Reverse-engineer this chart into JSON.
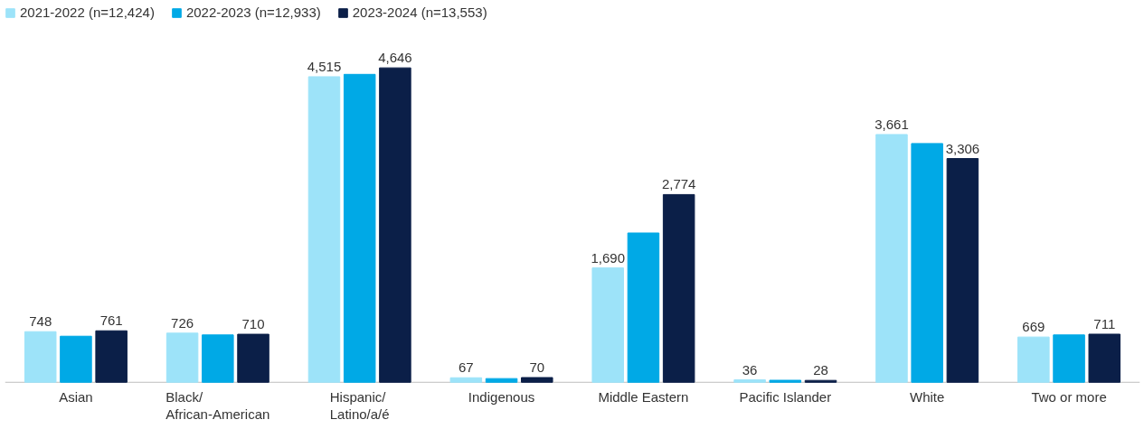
{
  "chart_data": {
    "type": "bar",
    "categories": [
      "Asian",
      "Black/\nAfrican-American",
      "Hispanic/\nLatino/a/é",
      "Indigenous",
      "Middle Eastern",
      "Pacific Islander",
      "White",
      "Two or more"
    ],
    "series": [
      {
        "name": "2021-2022 (n=12,424)",
        "color": "#9de3f9",
        "values": [
          748,
          726,
          4515,
          67,
          1690,
          36,
          3661,
          669
        ],
        "value_labels": [
          "748",
          "726",
          "4,515",
          "67",
          "1,690",
          "36",
          "3,661",
          "669"
        ]
      },
      {
        "name": "2022-2023 (n=12,933)",
        "color": "#00a9e6",
        "values": [
          681,
          700,
          4550,
          55,
          2206,
          30,
          3528,
          700
        ]
      },
      {
        "name": "2023-2024 (n=13,553)",
        "color": "#0b1f48",
        "values": [
          761,
          710,
          4646,
          70,
          2774,
          28,
          3306,
          711
        ],
        "value_labels": [
          "761",
          "710",
          "4,646",
          "70",
          "2,774",
          "28",
          "3,306",
          "711"
        ]
      }
    ],
    "legend": "top left",
    "grid": false,
    "tick_labels": "x"
  }
}
